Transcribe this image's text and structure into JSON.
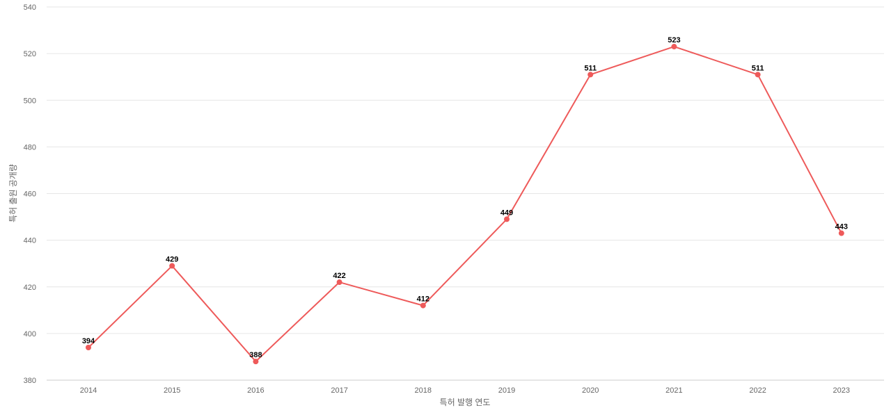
{
  "chart_data": {
    "type": "line",
    "title": "",
    "xlabel": "특허 발행 연도",
    "ylabel": "특허 출원 공개량",
    "categories": [
      "2014",
      "2015",
      "2016",
      "2017",
      "2018",
      "2019",
      "2020",
      "2021",
      "2022",
      "2023"
    ],
    "series": [
      {
        "values": [
          394,
          429,
          388,
          422,
          412,
          449,
          511,
          523,
          511,
          443
        ],
        "color": "#ee5a5a"
      }
    ],
    "ylim": [
      380,
      540
    ],
    "yticks": [
      380,
      400,
      420,
      440,
      460,
      480,
      500,
      520,
      540
    ],
    "grid": true,
    "legend": "none",
    "data_labels": true
  }
}
